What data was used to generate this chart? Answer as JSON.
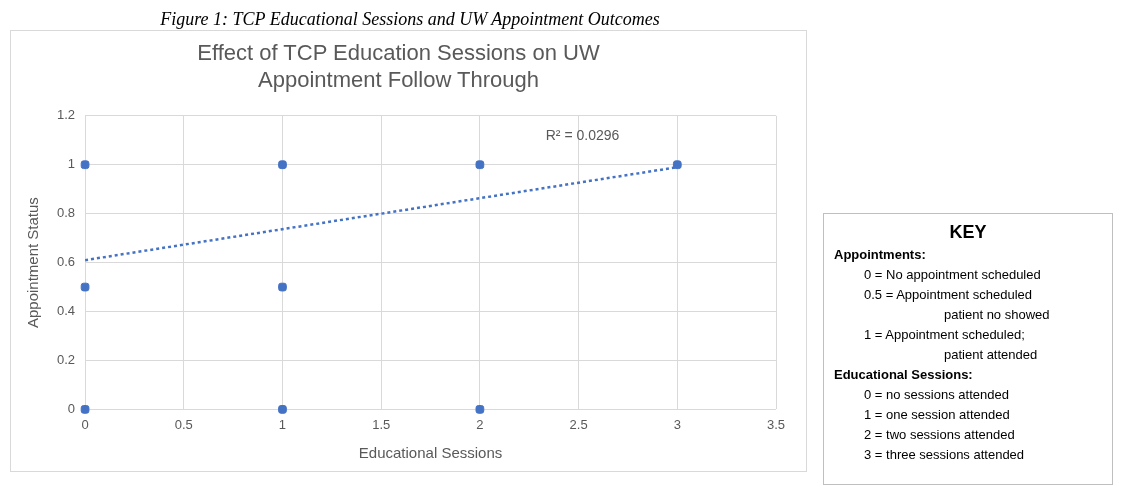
{
  "chart_data": [
    {
      "type": "scatter",
      "title": "Effect of TCP Education Sessions on UW Appointment Follow Through",
      "xlabel": "Educational Sessions",
      "ylabel": "Appointment Status",
      "annotations": [
        "Figure 1: TCP Educational Sessions and UW Appointment Outcomes",
        "R² = 0.0296"
      ],
      "series": [
        {
          "type": "scatter",
          "color": "#4472c4",
          "marker": "square",
          "x": [
            0,
            0,
            0,
            1,
            1,
            1,
            2,
            2,
            3
          ],
          "values": [
            1,
            0.5,
            0,
            1,
            0.5,
            0,
            1,
            0,
            1
          ]
        },
        {
          "type": "line",
          "color": "#4472c4",
          "marker": "none",
          "line_style": "dotted",
          "x": [
            0,
            3
          ],
          "values": [
            0.61,
            0.99
          ]
        }
      ],
      "xlim": [
        0,
        3.5
      ],
      "xticks": [
        0,
        0.5,
        1,
        1.5,
        2,
        2.5,
        3,
        3.5
      ],
      "ylim": [
        0,
        1.2
      ],
      "yticks": [
        0,
        0.2,
        0.4,
        0.6,
        0.8,
        1,
        1.2
      ],
      "grid": true,
      "legend": false
    },
    {
      "type": "other",
      "title": "KEY",
      "annotations": [
        "Appointments:",
        "0 = No appointment scheduled",
        "0.5 = Appointment scheduled",
        "patient no showed",
        "1 = Appointment scheduled;",
        "patient attended",
        "Educational Sessions:",
        "0 = no sessions attended",
        "1 = one session attended",
        "2 = two sessions attended",
        "3 = three sessions attended"
      ]
    }
  ]
}
